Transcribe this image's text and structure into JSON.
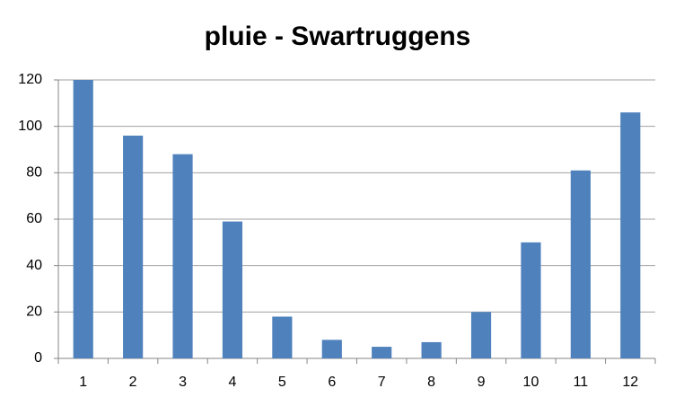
{
  "chart_data": {
    "type": "bar",
    "title": "pluie - Swartruggens",
    "categories": [
      "1",
      "2",
      "3",
      "4",
      "5",
      "6",
      "7",
      "8",
      "9",
      "10",
      "11",
      "12"
    ],
    "values": [
      120,
      96,
      88,
      59,
      18,
      8,
      5,
      7,
      20,
      50,
      81,
      106
    ],
    "color": "#4f81bd",
    "ylim": [
      0,
      120
    ],
    "yticks": [
      0,
      20,
      40,
      60,
      80,
      100,
      120
    ],
    "grid": true
  }
}
